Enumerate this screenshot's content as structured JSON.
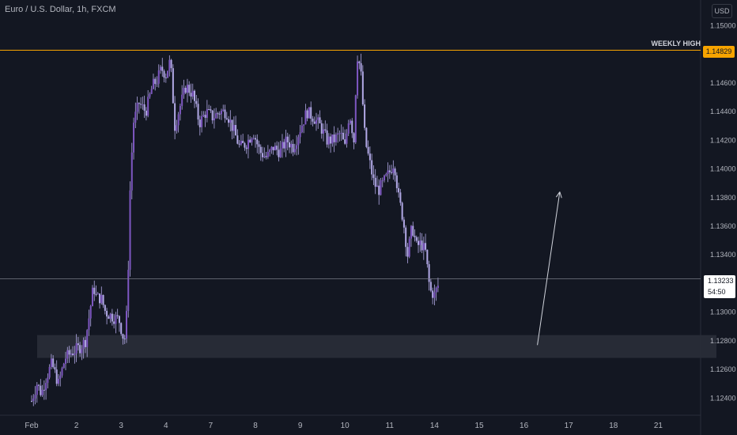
{
  "header": {
    "title": "Euro / U.S. Dollar, 1h, FXCM",
    "currency": "USD"
  },
  "annotations": {
    "weekly_high_label": "WEEKLY HIGH",
    "weekly_high_price": "1.14829",
    "current_price": "1.13233",
    "countdown": "54:50"
  },
  "colors": {
    "background": "#131722",
    "candle": "#b2a9e6",
    "candle_body_up": "#7e57c2",
    "weekly_high_line": "#f7a400",
    "current_price_line": "#787b86",
    "zone_fill": "#2a2e39",
    "arrow": "#d1d4dc"
  },
  "chart_data": {
    "type": "candlestick",
    "x_tick_labels": [
      "Feb",
      "2",
      "3",
      "4",
      "7",
      "8",
      "9",
      "10",
      "11",
      "14",
      "15",
      "16",
      "17",
      "18",
      "21"
    ],
    "y_tick_labels": [
      "1.15000",
      "1.14600",
      "1.14400",
      "1.14200",
      "1.14000",
      "1.13800",
      "1.13600",
      "1.13400",
      "1.13000",
      "1.12800",
      "1.12600",
      "1.12400"
    ],
    "ylim": [
      1.1228,
      1.1518
    ],
    "weekly_high": 1.14829,
    "current_price": 1.13233,
    "demand_zone": {
      "from": 1.1268,
      "to": 1.1284,
      "start_day": 0.0,
      "end_day": 15.3
    },
    "projection_arrow": {
      "from_day": 11.3,
      "from_price": 1.1277,
      "to_day": 11.8,
      "to_price": 1.1384
    },
    "x_days": [
      0,
      1,
      2,
      3,
      4,
      5,
      6,
      7,
      8,
      9,
      10,
      11,
      12,
      13,
      14
    ],
    "path": [
      [
        0.0,
        1.1238
      ],
      [
        0.12,
        1.125
      ],
      [
        0.22,
        1.1243
      ],
      [
        0.32,
        1.1254
      ],
      [
        0.45,
        1.1264
      ],
      [
        0.6,
        1.125
      ],
      [
        0.75,
        1.1268
      ],
      [
        0.9,
        1.1272
      ],
      [
        1.0,
        1.1274
      ],
      [
        1.1,
        1.1276
      ],
      [
        1.2,
        1.128
      ],
      [
        1.3,
        1.13
      ],
      [
        1.38,
        1.1318
      ],
      [
        1.45,
        1.131
      ],
      [
        1.55,
        1.131
      ],
      [
        1.65,
        1.13
      ],
      [
        1.75,
        1.1298
      ],
      [
        1.85,
        1.1296
      ],
      [
        1.95,
        1.1295
      ],
      [
        2.05,
        1.1282
      ],
      [
        2.1,
        1.1282
      ],
      [
        2.15,
        1.132
      ],
      [
        2.2,
        1.1385
      ],
      [
        2.27,
        1.1432
      ],
      [
        2.4,
        1.1446
      ],
      [
        2.55,
        1.144
      ],
      [
        2.7,
        1.1458
      ],
      [
        2.8,
        1.1462
      ],
      [
        2.9,
        1.147
      ],
      [
        3.0,
        1.1466
      ],
      [
        3.1,
        1.1476
      ],
      [
        3.2,
        1.143
      ],
      [
        3.3,
        1.1442
      ],
      [
        3.45,
        1.1458
      ],
      [
        3.6,
        1.1452
      ],
      [
        3.75,
        1.1432
      ],
      [
        3.9,
        1.144
      ],
      [
        4.05,
        1.1436
      ],
      [
        4.2,
        1.144
      ],
      [
        4.35,
        1.144
      ],
      [
        4.5,
        1.1428
      ],
      [
        4.65,
        1.1415
      ],
      [
        4.8,
        1.1418
      ],
      [
        4.95,
        1.1426
      ],
      [
        5.1,
        1.1412
      ],
      [
        5.25,
        1.1408
      ],
      [
        5.4,
        1.1415
      ],
      [
        5.55,
        1.1412
      ],
      [
        5.7,
        1.142
      ],
      [
        5.85,
        1.1415
      ],
      [
        6.0,
        1.1428
      ],
      [
        6.15,
        1.144
      ],
      [
        6.3,
        1.1436
      ],
      [
        6.45,
        1.143
      ],
      [
        6.6,
        1.142
      ],
      [
        6.75,
        1.142
      ],
      [
        6.9,
        1.1425
      ],
      [
        7.0,
        1.1415
      ],
      [
        7.1,
        1.144
      ],
      [
        7.2,
        1.142
      ],
      [
        7.27,
        1.148
      ],
      [
        7.35,
        1.147
      ],
      [
        7.45,
        1.142
      ],
      [
        7.55,
        1.1405
      ],
      [
        7.65,
        1.139
      ],
      [
        7.75,
        1.1385
      ],
      [
        7.85,
        1.139
      ],
      [
        8.0,
        1.1398
      ],
      [
        8.1,
        1.1405
      ],
      [
        8.2,
        1.138
      ],
      [
        8.3,
        1.1365
      ],
      [
        8.4,
        1.134
      ],
      [
        8.5,
        1.136
      ],
      [
        8.6,
        1.1346
      ],
      [
        8.7,
        1.1348
      ],
      [
        8.8,
        1.1342
      ],
      [
        8.9,
        1.1315
      ],
      [
        9.0,
        1.1312
      ],
      [
        9.1,
        1.132
      ]
    ]
  }
}
